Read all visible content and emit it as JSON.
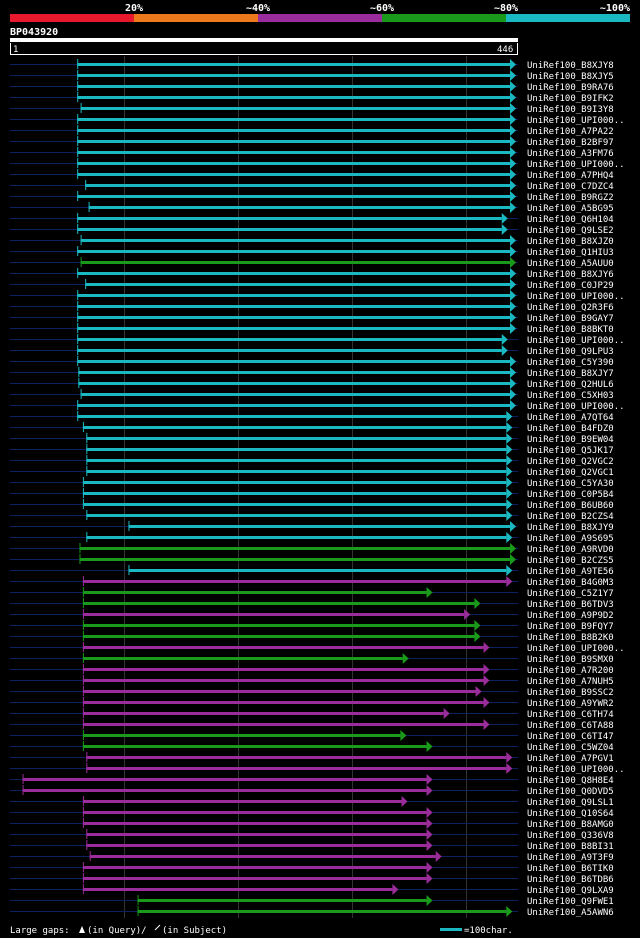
{
  "chart_data": {
    "type": "alignment-overview",
    "query_id": "BP043920",
    "query_length": 446,
    "axis": {
      "start_label": "1",
      "end_label": "446",
      "range": [
        1,
        446
      ]
    },
    "identity_bins": [
      {
        "label": "",
        "color": "#e8192c"
      },
      {
        "label": "20%",
        "color": "#ec7a1d"
      },
      {
        "label": "~40%",
        "color": "#9b2c9b"
      },
      {
        "label": "~60%",
        "color": "#1a9a1a"
      },
      {
        "label": "~80%",
        "color": "#1ab9c1"
      }
    ],
    "bin_end_label": "~100%",
    "hits": [
      {
        "name": "UniRef100_B8XJY8",
        "start": 59,
        "end": 446,
        "c": "#1ab9c1"
      },
      {
        "name": "UniRef100_B8XJY5",
        "start": 59,
        "end": 446,
        "c": "#1ab9c1"
      },
      {
        "name": "UniRef100_B9RA76",
        "start": 59,
        "end": 448,
        "c": "#1ab9c1"
      },
      {
        "name": "UniRef100_B9IFK2",
        "start": 59,
        "end": 448,
        "c": "#1ab9c1"
      },
      {
        "name": "UniRef100_B9I3Y8",
        "start": 62,
        "end": 448,
        "c": "#1ab9c1"
      },
      {
        "name": "UniRef100_UPI000..",
        "start": 59,
        "end": 448,
        "c": "#1ab9c1"
      },
      {
        "name": "UniRef100_A7PA22",
        "start": 59,
        "end": 448,
        "c": "#1ab9c1"
      },
      {
        "name": "UniRef100_B2BF97",
        "start": 59,
        "end": 448,
        "c": "#1ab9c1"
      },
      {
        "name": "UniRef100_A3FM76",
        "start": 59,
        "end": 446,
        "c": "#1ab9c1"
      },
      {
        "name": "UniRef100_UPI000..",
        "start": 59,
        "end": 446,
        "c": "#1ab9c1"
      },
      {
        "name": "UniRef100_A7PHQ4",
        "start": 59,
        "end": 446,
        "c": "#1ab9c1"
      },
      {
        "name": "UniRef100_C7DZC4",
        "start": 66,
        "end": 446,
        "c": "#1ab9c1"
      },
      {
        "name": "UniRef100_B9RGZ2",
        "start": 59,
        "end": 446,
        "c": "#1ab9c1"
      },
      {
        "name": "UniRef100_A5BG95",
        "start": 69,
        "end": 446,
        "c": "#1ab9c1"
      },
      {
        "name": "UniRef100_Q6H104",
        "start": 59,
        "end": 437,
        "c": "#1ab9c1"
      },
      {
        "name": "UniRef100_Q9LSE2",
        "start": 59,
        "end": 437,
        "c": "#1ab9c1"
      },
      {
        "name": "UniRef100_B8XJZ0",
        "start": 62,
        "end": 446,
        "c": "#1ab9c1"
      },
      {
        "name": "UniRef100_Q1HIU3",
        "start": 59,
        "end": 448,
        "c": "#1ab9c1"
      },
      {
        "name": "UniRef100_A5AUU0",
        "start": 62,
        "end": 446,
        "c": "#1a9a1a",
        "gap": false
      },
      {
        "name": "UniRef100_B8XJY6",
        "start": 59,
        "end": 446,
        "c": "#1ab9c1"
      },
      {
        "name": "UniRef100_C0JP29",
        "start": 66,
        "end": 446,
        "c": "#1ab9c1"
      },
      {
        "name": "UniRef100_UPI000..",
        "start": 59,
        "end": 446,
        "c": "#1ab9c1"
      },
      {
        "name": "UniRef100_Q2R3F6",
        "start": 59,
        "end": 446,
        "c": "#1ab9c1"
      },
      {
        "name": "UniRef100_B9GAY7",
        "start": 59,
        "end": 446,
        "c": "#1ab9c1"
      },
      {
        "name": "UniRef100_B8BKT0",
        "start": 59,
        "end": 446,
        "c": "#1ab9c1"
      },
      {
        "name": "UniRef100_UPI000..",
        "start": 59,
        "end": 437,
        "c": "#1ab9c1"
      },
      {
        "name": "UniRef100_Q9LPU3",
        "start": 59,
        "end": 437,
        "c": "#1ab9c1"
      },
      {
        "name": "UniRef100_C5Y390",
        "start": 59,
        "end": 446,
        "c": "#1ab9c1"
      },
      {
        "name": "UniRef100_B8XJY7",
        "start": 60,
        "end": 446,
        "c": "#1ab9c1"
      },
      {
        "name": "UniRef100_Q2HUL6",
        "start": 60,
        "end": 446,
        "c": "#1ab9c1"
      },
      {
        "name": "UniRef100_C5XH03",
        "start": 62,
        "end": 448,
        "c": "#1ab9c1"
      },
      {
        "name": "UniRef100_UPI000..",
        "start": 59,
        "end": 446,
        "c": "#1ab9c1"
      },
      {
        "name": "UniRef100_A7QT64",
        "start": 59,
        "end": 441,
        "c": "#1ab9c1"
      },
      {
        "name": "UniRef100_B4FDZ0",
        "start": 64,
        "end": 441,
        "c": "#1ab9c1"
      },
      {
        "name": "UniRef100_B9EW04",
        "start": 67,
        "end": 441,
        "c": "#1ab9c1"
      },
      {
        "name": "UniRef100_Q5JK17",
        "start": 67,
        "end": 441,
        "c": "#1ab9c1"
      },
      {
        "name": "UniRef100_Q2VGC2",
        "start": 67,
        "end": 441,
        "c": "#1ab9c1"
      },
      {
        "name": "UniRef100_Q2VGC1",
        "start": 67,
        "end": 441,
        "c": "#1ab9c1"
      },
      {
        "name": "UniRef100_C5YA30",
        "start": 64,
        "end": 441,
        "c": "#1ab9c1"
      },
      {
        "name": "UniRef100_C0P5B4",
        "start": 64,
        "end": 441,
        "c": "#1ab9c1"
      },
      {
        "name": "UniRef100_B6UB60",
        "start": 64,
        "end": 441,
        "c": "#1ab9c1"
      },
      {
        "name": "UniRef100_B2CZS4",
        "start": 67,
        "end": 441,
        "c": "#1ab9c1"
      },
      {
        "name": "UniRef100_B8XJY9",
        "start": 104,
        "end": 446,
        "c": "#1ab9c1"
      },
      {
        "name": "UniRef100_A9S695",
        "start": 67,
        "end": 441,
        "c": "#1ab9c1"
      },
      {
        "name": "UniRef100_A9RVD0",
        "start": 61,
        "end": 446,
        "c": "#1a9a1a"
      },
      {
        "name": "UniRef100_B2CZS5",
        "start": 61,
        "end": 448,
        "c": "#1a9a1a"
      },
      {
        "name": "UniRef100_A9TE56",
        "start": 104,
        "end": 441,
        "c": "#1ab9c1"
      },
      {
        "name": "UniRef100_B4G0M3",
        "start": 64,
        "end": 441,
        "c": "#9b2c9b"
      },
      {
        "name": "UniRef100_C5Z1Y7",
        "start": 64,
        "end": 371,
        "c": "#1a9a1a"
      },
      {
        "name": "UniRef100_B6TDV3",
        "start": 64,
        "end": 413,
        "c": "#1a9a1a"
      },
      {
        "name": "UniRef100_A9P9D2",
        "start": 64,
        "end": 404,
        "c": "#9b2c9b"
      },
      {
        "name": "UniRef100_B9FQY7",
        "start": 64,
        "end": 413,
        "c": "#1a9a1a"
      },
      {
        "name": "UniRef100_B8B2K0",
        "start": 64,
        "end": 413,
        "c": "#1a9a1a"
      },
      {
        "name": "UniRef100_UPI000..",
        "start": 64,
        "end": 421,
        "c": "#9b2c9b"
      },
      {
        "name": "UniRef100_B9SMX0",
        "start": 64,
        "end": 350,
        "c": "#1a9a1a"
      },
      {
        "name": "UniRef100_A7R200",
        "start": 64,
        "end": 421,
        "c": "#9b2c9b"
      },
      {
        "name": "UniRef100_A7NUH5",
        "start": 64,
        "end": 421,
        "c": "#9b2c9b"
      },
      {
        "name": "UniRef100_B9SSC2",
        "start": 64,
        "end": 414,
        "c": "#9b2c9b"
      },
      {
        "name": "UniRef100_A9YWR2",
        "start": 64,
        "end": 421,
        "c": "#9b2c9b"
      },
      {
        "name": "UniRef100_C6TH74",
        "start": 64,
        "end": 386,
        "c": "#9b2c9b"
      },
      {
        "name": "UniRef100_C6TA88",
        "start": 64,
        "end": 421,
        "c": "#9b2c9b"
      },
      {
        "name": "UniRef100_C6TI47",
        "start": 64,
        "end": 348,
        "c": "#1a9a1a"
      },
      {
        "name": "UniRef100_C5WZ04",
        "start": 64,
        "end": 371,
        "c": "#1a9a1a"
      },
      {
        "name": "UniRef100_A7PGV1",
        "start": 67,
        "end": 441,
        "c": "#9b2c9b"
      },
      {
        "name": "UniRef100_UPI000..",
        "start": 67,
        "end": 441,
        "c": "#9b2c9b"
      },
      {
        "name": "UniRef100_Q8H8E4",
        "start": 11,
        "end": 371,
        "c": "#9b2c9b"
      },
      {
        "name": "UniRef100_Q0DVD5",
        "start": 11,
        "end": 371,
        "c": "#9b2c9b"
      },
      {
        "name": "UniRef100_Q9LSL1",
        "start": 64,
        "end": 349,
        "c": "#9b2c9b"
      },
      {
        "name": "UniRef100_Q10S64",
        "start": 64,
        "end": 371,
        "c": "#9b2c9b"
      },
      {
        "name": "UniRef100_B8AMG0",
        "start": 64,
        "end": 371,
        "c": "#9b2c9b"
      },
      {
        "name": "UniRef100_Q336V8",
        "start": 67,
        "end": 371,
        "c": "#9b2c9b"
      },
      {
        "name": "UniRef100_B8BI31",
        "start": 67,
        "end": 371,
        "c": "#9b2c9b"
      },
      {
        "name": "UniRef100_A9T3F9",
        "start": 70,
        "end": 379,
        "c": "#9b2c9b"
      },
      {
        "name": "UniRef100_B6TIK0",
        "start": 64,
        "end": 371,
        "c": "#9b2c9b"
      },
      {
        "name": "UniRef100_B6TDB6",
        "start": 64,
        "end": 371,
        "c": "#9b2c9b"
      },
      {
        "name": "UniRef100_Q9LXA9",
        "start": 64,
        "end": 341,
        "c": "#9b2c9b"
      },
      {
        "name": "UniRef100_Q9FWE1",
        "start": 112,
        "end": 371,
        "c": "#1a9a1a"
      },
      {
        "name": "UniRef100_A5AWN6",
        "start": 112,
        "end": 441,
        "c": "#1a9a1a"
      }
    ],
    "legend": {
      "large_gaps": "Large gaps:",
      "in_query": "(in Query)/",
      "in_subject": "(in Subject)",
      "scale_text": "=100char.",
      "scale_color": "#1ab9c1"
    }
  }
}
